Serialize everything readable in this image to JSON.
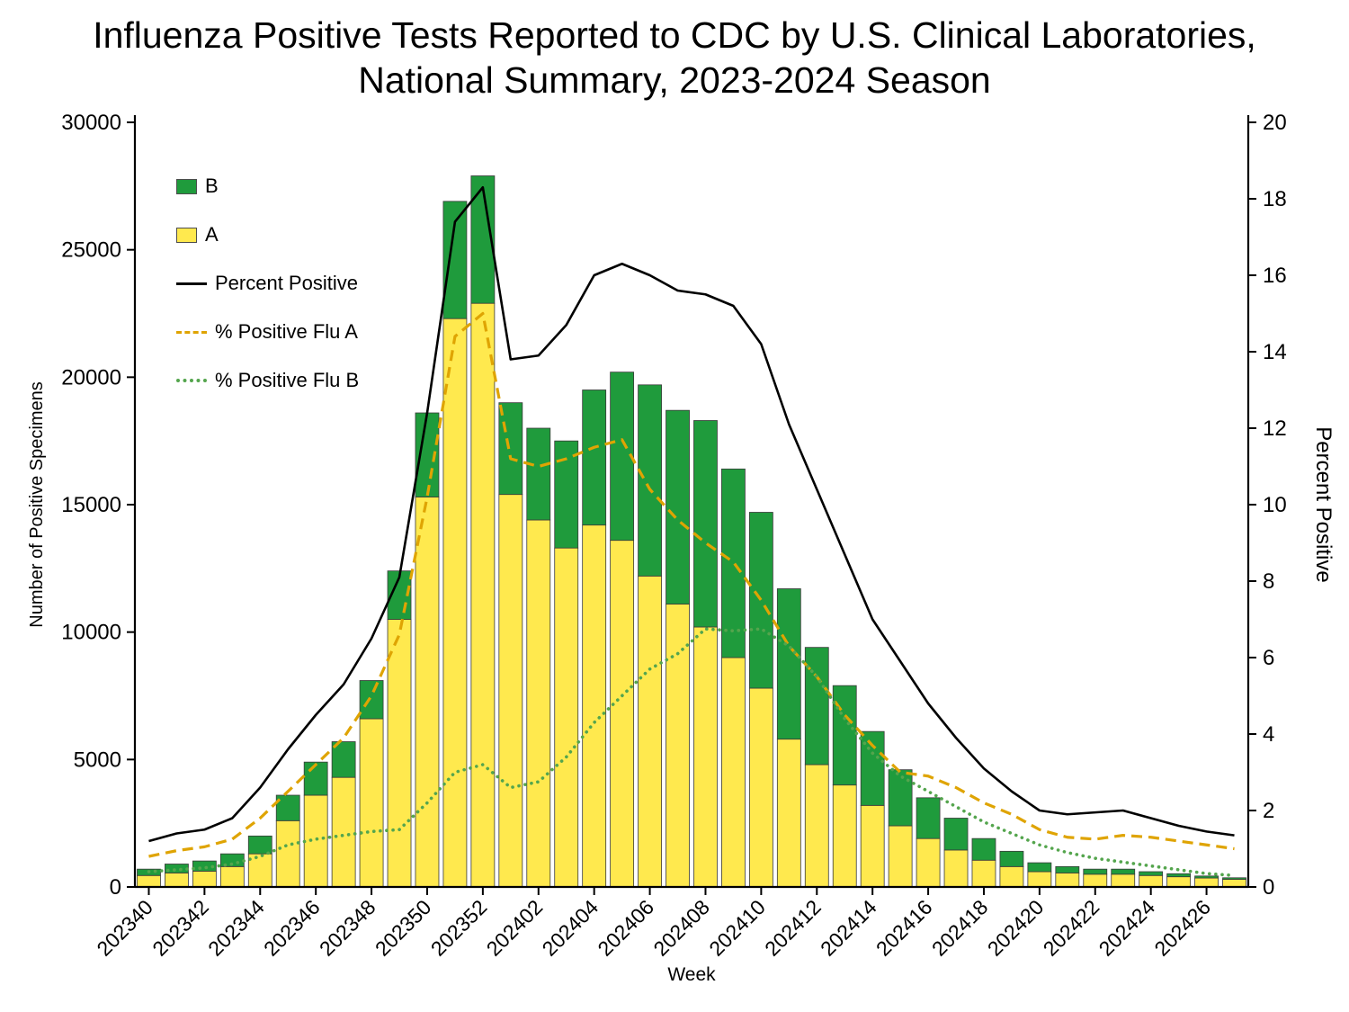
{
  "title": {
    "line1": "Influenza Positive Tests Reported to CDC by U.S. Clinical Laboratories,",
    "line2": "National Summary, 2023-2024 Season"
  },
  "chart_data": {
    "type": "bar",
    "subtype": "stacked-bar-with-lines",
    "title": "Influenza Positive Tests Reported to CDC by U.S. Clinical Laboratories, National Summary, 2023-2024 Season",
    "xlabel": "Week",
    "ylabel_left": "Number of Positive Specimens",
    "ylabel_right": "Percent Positive",
    "left_axis": {
      "min": 0,
      "max": 30000,
      "ticks": [
        0,
        5000,
        10000,
        15000,
        20000,
        25000,
        30000
      ]
    },
    "right_axis": {
      "min": 0,
      "max": 20,
      "ticks": [
        0,
        2,
        4,
        6,
        8,
        10,
        12,
        14,
        16,
        18,
        20
      ]
    },
    "categories": [
      "202340",
      "202341",
      "202342",
      "202343",
      "202344",
      "202345",
      "202346",
      "202347",
      "202348",
      "202349",
      "202350",
      "202351",
      "202352",
      "202401",
      "202402",
      "202403",
      "202404",
      "202405",
      "202406",
      "202407",
      "202408",
      "202409",
      "202410",
      "202411",
      "202412",
      "202413",
      "202414",
      "202415",
      "202416",
      "202417",
      "202418",
      "202419",
      "202420",
      "202421",
      "202422",
      "202423",
      "202424",
      "202425",
      "202426",
      "202427"
    ],
    "xtick_labels": [
      "202340",
      "202342",
      "202344",
      "202346",
      "202348",
      "202350",
      "202352",
      "202402",
      "202404",
      "202406",
      "202408",
      "202410",
      "202412",
      "202414",
      "202416",
      "202418",
      "202420",
      "202422",
      "202424",
      "202426"
    ],
    "stacked_bar_series": [
      {
        "name": "A",
        "color": "#ffe94e",
        "values": [
          450,
          550,
          620,
          800,
          1300,
          2600,
          3600,
          4300,
          6600,
          10500,
          15300,
          22300,
          22900,
          15400,
          14400,
          13300,
          14200,
          13600,
          12200,
          11100,
          10200,
          9000,
          7800,
          5800,
          4800,
          4000,
          3200,
          2400,
          1900,
          1450,
          1050,
          800,
          600,
          550,
          500,
          500,
          450,
          400,
          350,
          300
        ]
      },
      {
        "name": "B",
        "color": "#1f9b3c",
        "values": [
          250,
          350,
          400,
          500,
          700,
          1000,
          1300,
          1400,
          1500,
          1900,
          3300,
          4600,
          5000,
          3600,
          3600,
          4200,
          5300,
          6600,
          7500,
          7600,
          8100,
          7400,
          6900,
          5900,
          4600,
          3900,
          2900,
          2200,
          1600,
          1250,
          850,
          600,
          350,
          250,
          200,
          200,
          150,
          120,
          80,
          60
        ]
      }
    ],
    "line_series": [
      {
        "name": "Percent Positive",
        "axis": "right",
        "style": "solid",
        "color": "#000000",
        "values": [
          1.2,
          1.4,
          1.5,
          1.8,
          2.6,
          3.6,
          4.5,
          5.3,
          6.5,
          8.1,
          12.4,
          17.4,
          18.3,
          13.8,
          13.9,
          14.7,
          16.0,
          16.3,
          16.0,
          15.6,
          15.5,
          15.2,
          14.2,
          12.1,
          10.4,
          8.7,
          7.0,
          5.9,
          4.8,
          3.9,
          3.1,
          2.5,
          2.0,
          1.9,
          1.95,
          2.0,
          1.8,
          1.6,
          1.45,
          1.35
        ]
      },
      {
        "name": "% Positive Flu A",
        "axis": "right",
        "style": "dashed",
        "color": "#dfa403",
        "values": [
          0.8,
          0.95,
          1.05,
          1.25,
          1.8,
          2.5,
          3.2,
          3.9,
          5.0,
          6.6,
          10.2,
          14.4,
          15.0,
          11.2,
          11.0,
          11.2,
          11.5,
          11.7,
          10.4,
          9.6,
          9.0,
          8.5,
          7.5,
          6.3,
          5.5,
          4.5,
          3.7,
          3.0,
          2.9,
          2.6,
          2.2,
          1.9,
          1.5,
          1.3,
          1.25,
          1.35,
          1.3,
          1.2,
          1.1,
          1.0
        ]
      },
      {
        "name": "% Positive Flu B",
        "axis": "right",
        "style": "dotted",
        "color": "#54a54d",
        "values": [
          0.4,
          0.45,
          0.5,
          0.6,
          0.8,
          1.1,
          1.25,
          1.35,
          1.45,
          1.5,
          2.2,
          3.0,
          3.2,
          2.6,
          2.75,
          3.4,
          4.3,
          5.0,
          5.7,
          6.1,
          6.75,
          6.7,
          6.75,
          6.3,
          5.5,
          4.4,
          3.5,
          2.9,
          2.5,
          2.1,
          1.7,
          1.4,
          1.1,
          0.9,
          0.75,
          0.65,
          0.55,
          0.45,
          0.35,
          0.3
        ]
      }
    ],
    "legend_position": "upper-left-inside",
    "grid": false,
    "colors": {
      "flu_a_bar": "#ffe94e",
      "flu_b_bar": "#1f9b3c",
      "percent_positive_line": "#000000",
      "pct_flu_a_line": "#dfa403",
      "pct_flu_b_line": "#54a54d"
    }
  }
}
